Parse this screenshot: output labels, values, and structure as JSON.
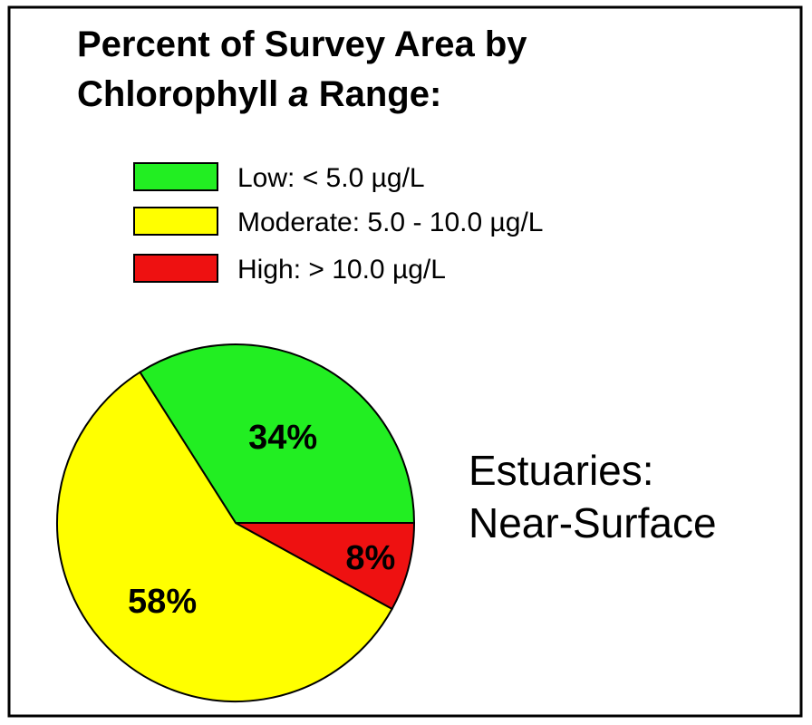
{
  "chart_data": {
    "type": "pie",
    "title": [
      "Percent of Survey Area by",
      "Chlorophyll ",
      "a",
      " Range:"
    ],
    "annotation": [
      "Estuaries:",
      "Near-Surface"
    ],
    "categories": [
      "Low: < 5.0 µg/L",
      "Moderate: 5.0 - 10.0 µg/L",
      "High: > 10.0 µg/L"
    ],
    "values": [
      34,
      58,
      8
    ],
    "value_labels": [
      "34%",
      "58%",
      "8%"
    ],
    "colors": [
      "#22ee22",
      "#ffff00",
      "#ee1111"
    ],
    "legend": "top-left"
  }
}
